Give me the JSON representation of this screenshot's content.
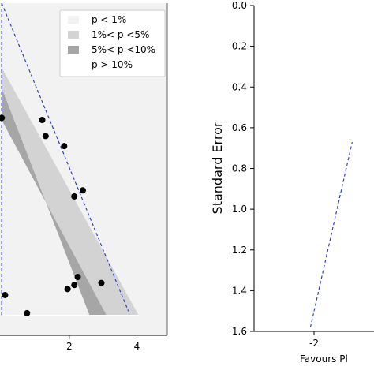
{
  "chart_data": [
    {
      "type": "scatter",
      "title": "",
      "xlabel": "",
      "ylabel": "",
      "xlim": [
        -0.05,
        4.9
      ],
      "ylim": [
        1.65,
        0.0
      ],
      "yaxis_inverted": true,
      "x_ticks": [
        "2",
        "4"
      ],
      "x_tick_values": [
        2,
        4
      ],
      "background": "#f2f2f2",
      "legend": {
        "placement": "top-right",
        "entries": [
          {
            "label": "p < 1%",
            "color": "#f2f2f2"
          },
          {
            "label": "1%< p <5%",
            "color": "#d3d3d3"
          },
          {
            "label": "5%< p <10%",
            "color": "#a6a6a6"
          },
          {
            "label": "p > 10%",
            "color": "#ffffff"
          }
        ]
      },
      "contour_regions": [
        {
          "name": "1%< p <5%",
          "color": "#d3d3d3",
          "polygon": [
            [
              0,
              0.32
            ],
            [
              0,
              0.42
            ],
            [
              2.6,
              1.55
            ],
            [
              4.05,
              1.55
            ]
          ]
        },
        {
          "name": "5%< p <10%",
          "color": "#a6a6a6",
          "polygon": [
            [
              0,
              0.42
            ],
            [
              0,
              0.58
            ],
            [
              3.1,
              1.55
            ],
            [
              2.6,
              1.55
            ]
          ]
        }
      ],
      "reference_lines": [
        {
          "kind": "vertical",
          "x": 0.0,
          "style": "dashed",
          "color": "#3344bb"
        },
        {
          "kind": "funnel-edge",
          "from": [
            0.0,
            0.0
          ],
          "to": [
            3.75,
            1.53
          ],
          "style": "dashed",
          "color": "#3344bb"
        }
      ],
      "series": [
        {
          "color": "#000000",
          "points": [
            {
              "x": 0.0,
              "y": 0.57
            },
            {
              "x": 1.2,
              "y": 0.58
            },
            {
              "x": 1.3,
              "y": 0.66
            },
            {
              "x": 1.85,
              "y": 0.71
            },
            {
              "x": 2.15,
              "y": 0.96
            },
            {
              "x": 2.4,
              "y": 0.93
            },
            {
              "x": 0.1,
              "y": 1.45
            },
            {
              "x": 1.95,
              "y": 1.42
            },
            {
              "x": 2.15,
              "y": 1.4
            },
            {
              "x": 2.25,
              "y": 1.36
            },
            {
              "x": 2.95,
              "y": 1.39
            },
            {
              "x": 0.75,
              "y": 1.54
            }
          ]
        }
      ]
    },
    {
      "type": "scatter",
      "title": "",
      "xlabel": "Favours Pl",
      "ylabel": "Standard Error",
      "ylim": [
        1.6,
        0.0
      ],
      "yaxis_inverted": true,
      "y_ticks": [
        "0.0",
        "0.2",
        "0.4",
        "0.6",
        "0.8",
        "1.0",
        "1.2",
        "1.4",
        "1.6"
      ],
      "y_tick_values": [
        0.0,
        0.2,
        0.4,
        0.6,
        0.8,
        1.0,
        1.2,
        1.4,
        1.6
      ],
      "x_ticks": [
        "-2"
      ],
      "x_tick_values": [
        -2
      ],
      "reference_lines": [
        {
          "kind": "funnel-edge",
          "from": [
            -2.1,
            1.58
          ],
          "to": [
            -0.95,
            0.67
          ],
          "style": "dashed",
          "color": "#3344bb"
        }
      ],
      "series": []
    }
  ]
}
